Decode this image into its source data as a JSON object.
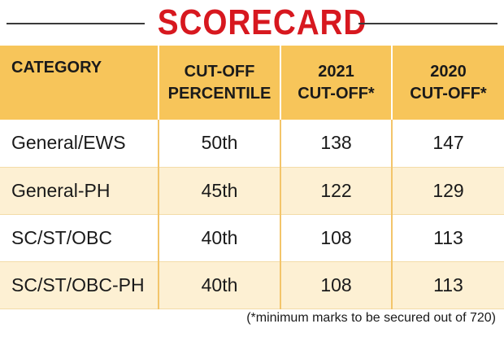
{
  "title": "SCORECARD",
  "headers": {
    "category": "CATEGORY",
    "percentile_line1": "CUT-OFF",
    "percentile_line2": "PERCENTILE",
    "cut2021_line1": "2021",
    "cut2021_line2": "CUT-OFF*",
    "cut2020_line1": "2020",
    "cut2020_line2": "CUT-OFF*"
  },
  "rows": [
    {
      "category": "General/EWS",
      "percentile": "50th",
      "cut2021": "138",
      "cut2020": "147"
    },
    {
      "category": "General-PH",
      "percentile": "45th",
      "cut2021": "122",
      "cut2020": "129"
    },
    {
      "category": "SC/ST/OBC",
      "percentile": "40th",
      "cut2021": "108",
      "cut2020": "113"
    },
    {
      "category": "SC/ST/OBC-PH",
      "percentile": "40th",
      "cut2021": "108",
      "cut2020": "113"
    }
  ],
  "footnote": "(*minimum marks to be secured out of 720)",
  "colors": {
    "title": "#d7181f",
    "header_bg": "#f7c55a",
    "stripe_bg": "#fdf0d3"
  }
}
